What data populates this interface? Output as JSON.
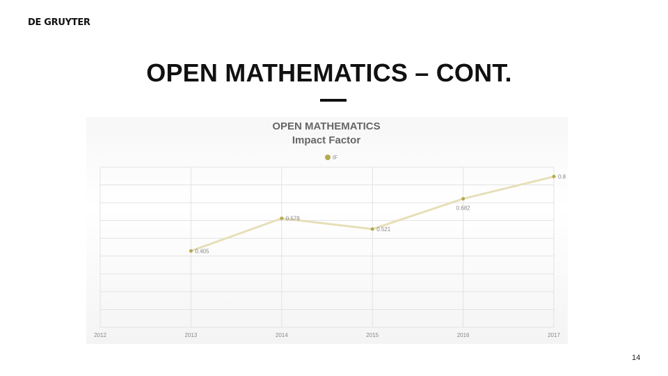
{
  "header": {
    "logo": "DE GRUYTER"
  },
  "slide": {
    "title": "OPEN MATHEMATICS – CONT.",
    "page_number": "14"
  },
  "chart_data": {
    "type": "line",
    "title": "OPEN MATHEMATICS",
    "subtitle": "Impact Factor",
    "legend": {
      "position": "top-center",
      "entries": [
        "IF"
      ]
    },
    "categories": [
      "2012",
      "2013",
      "2014",
      "2015",
      "2016",
      "2017"
    ],
    "series": [
      {
        "name": "IF",
        "color": "#b5a94f",
        "values": [
          null,
          0.405,
          0.578,
          0.521,
          0.682,
          0.8
        ],
        "labels": [
          "",
          "0.405",
          "0.578",
          "0.521",
          "0.682",
          "0.8"
        ]
      }
    ],
    "ylim": [
      0,
      0.85
    ],
    "grid": true,
    "xlabel": "",
    "ylabel": ""
  }
}
